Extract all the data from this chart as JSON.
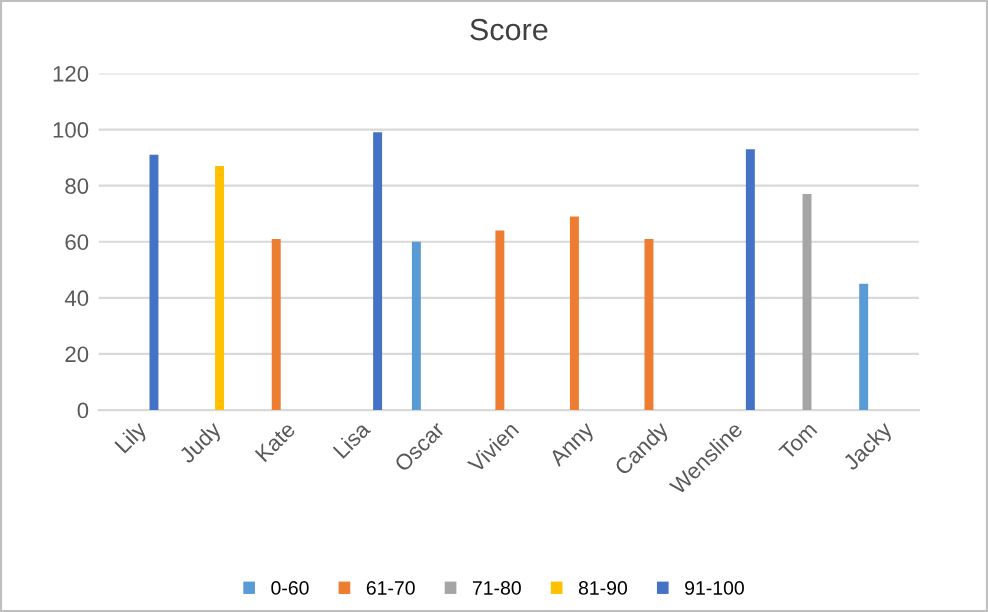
{
  "chart_data": {
    "type": "bar",
    "title": "Score",
    "categories": [
      "Lily",
      "Judy",
      "Kate",
      "Lisa",
      "Oscar",
      "Vivien",
      "Anny",
      "Candy",
      "Wensline",
      "Tom",
      "Jacky"
    ],
    "series": [
      {
        "name": "0-60",
        "color": "#5b9bd5",
        "values": [
          null,
          null,
          null,
          null,
          60,
          null,
          null,
          null,
          null,
          null,
          45
        ]
      },
      {
        "name": "61-70",
        "color": "#ed7d31",
        "values": [
          null,
          null,
          61,
          null,
          null,
          64,
          69,
          61,
          null,
          null,
          null
        ]
      },
      {
        "name": "71-80",
        "color": "#a5a5a5",
        "values": [
          null,
          null,
          null,
          null,
          null,
          null,
          null,
          null,
          null,
          77,
          null
        ]
      },
      {
        "name": "81-90",
        "color": "#ffc000",
        "values": [
          null,
          87,
          null,
          null,
          null,
          null,
          null,
          null,
          null,
          null,
          null
        ]
      },
      {
        "name": "91-100",
        "color": "#4472c4",
        "values": [
          91,
          null,
          null,
          99,
          null,
          null,
          null,
          null,
          93,
          null,
          null
        ]
      }
    ],
    "ylim": [
      0,
      120
    ],
    "yticks": [
      0,
      20,
      40,
      60,
      80,
      100,
      120
    ],
    "grid": "y",
    "legend": "bottom"
  }
}
